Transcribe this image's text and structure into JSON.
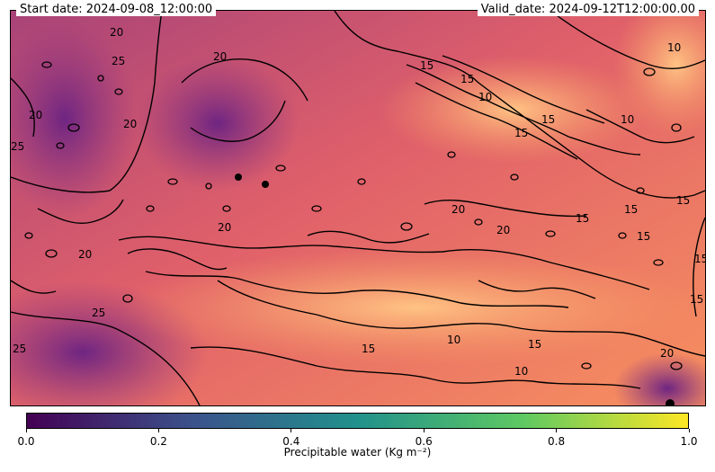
{
  "header": {
    "start_date": "Start date: 2024-09-08_12:00:00",
    "valid_date": "Valid_date: 2024-09-12T12:00:00.00"
  },
  "contour_labels": [
    {
      "text": "20",
      "key": "a"
    },
    {
      "text": "25",
      "key": "b"
    },
    {
      "text": "20",
      "key": "c"
    },
    {
      "text": "25",
      "key": "d"
    },
    {
      "text": "20",
      "key": "e"
    },
    {
      "text": "20",
      "key": "f"
    },
    {
      "text": "15",
      "key": "g"
    },
    {
      "text": "15",
      "key": "h"
    },
    {
      "text": "10",
      "key": "i"
    },
    {
      "text": "15",
      "key": "j"
    },
    {
      "text": "15",
      "key": "k"
    },
    {
      "text": "10",
      "key": "l"
    },
    {
      "text": "20",
      "key": "m"
    },
    {
      "text": "20",
      "key": "n"
    },
    {
      "text": "15",
      "key": "o"
    },
    {
      "text": "15",
      "key": "p"
    },
    {
      "text": "15",
      "key": "q"
    },
    {
      "text": "10",
      "key": "r"
    },
    {
      "text": "15",
      "key": "s"
    },
    {
      "text": "15",
      "key": "t"
    },
    {
      "text": "20",
      "key": "u"
    },
    {
      "text": "25",
      "key": "v"
    },
    {
      "text": "25",
      "key": "w"
    },
    {
      "text": "10",
      "key": "x"
    },
    {
      "text": "15",
      "key": "y"
    },
    {
      "text": "10",
      "key": "z"
    },
    {
      "text": "20",
      "key": "aa"
    },
    {
      "text": "15",
      "key": "bb"
    },
    {
      "text": "20",
      "key": "cc"
    },
    {
      "text": "15",
      "key": "dd"
    }
  ],
  "colorbar": {
    "label": "Precipitable water (Kg m⁻²)",
    "ticks": [
      "0.0",
      "0.2",
      "0.4",
      "0.6",
      "0.8",
      "1.0"
    ],
    "tick_values": [
      0.0,
      0.2,
      0.4,
      0.6,
      0.8,
      1.0
    ],
    "colormap": "viridis",
    "colors": [
      "#440154",
      "#3b528b",
      "#21918c",
      "#5ec962",
      "#fde725"
    ]
  },
  "map_colors": {
    "fill_colormap": "magma",
    "low": "#7a2a80",
    "mid": "#e0606a",
    "high": "#ffb37a"
  }
}
